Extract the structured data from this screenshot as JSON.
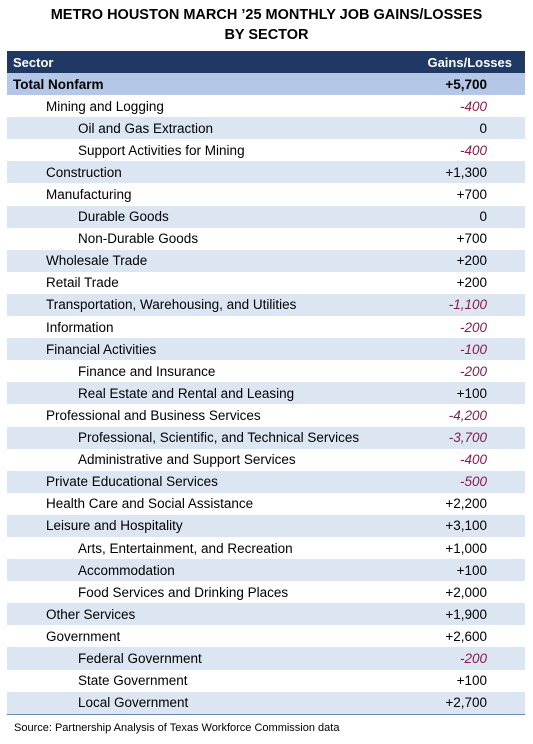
{
  "title_line1": "METRO HOUSTON MARCH ’25 MONTHLY JOB GAINS/LOSSES",
  "title_line2": "BY SECTOR",
  "header": {
    "sector": "Sector",
    "change": "Gains/Losses"
  },
  "colors": {
    "header_bg": "#1f3864",
    "total_bg": "#b4c7e7",
    "stripe_bg": "#dce6f2",
    "negative_text": "#8b1a4a"
  },
  "rows": [
    {
      "sector": "Total Nonfarm",
      "value": "+5,700",
      "level": 0,
      "negative": false
    },
    {
      "sector": "Mining and Logging",
      "value": "-400",
      "level": 1,
      "negative": true
    },
    {
      "sector": "Oil and Gas Extraction",
      "value": "0",
      "level": 2,
      "negative": false
    },
    {
      "sector": "Support Activities for Mining",
      "value": "-400",
      "level": 2,
      "negative": true
    },
    {
      "sector": "Construction",
      "value": "+1,300",
      "level": 1,
      "negative": false
    },
    {
      "sector": "Manufacturing",
      "value": "+700",
      "level": 1,
      "negative": false
    },
    {
      "sector": "Durable Goods",
      "value": "0",
      "level": 2,
      "negative": false
    },
    {
      "sector": "Non-Durable Goods",
      "value": "+700",
      "level": 2,
      "negative": false
    },
    {
      "sector": "Wholesale Trade",
      "value": "+200",
      "level": 1,
      "negative": false
    },
    {
      "sector": "Retail Trade",
      "value": "+200",
      "level": 1,
      "negative": false
    },
    {
      "sector": "Transportation, Warehousing, and Utilities",
      "value": "-1,100",
      "level": 1,
      "negative": true
    },
    {
      "sector": "Information",
      "value": "-200",
      "level": 1,
      "negative": true
    },
    {
      "sector": "Financial Activities",
      "value": "-100",
      "level": 1,
      "negative": true
    },
    {
      "sector": "Finance and Insurance",
      "value": "-200",
      "level": 2,
      "negative": true
    },
    {
      "sector": "Real Estate and Rental and Leasing",
      "value": "+100",
      "level": 2,
      "negative": false
    },
    {
      "sector": "Professional and Business Services",
      "value": "-4,200",
      "level": 1,
      "negative": true
    },
    {
      "sector": "Professional, Scientific, and Technical Services",
      "value": "-3,700",
      "level": 2,
      "negative": true
    },
    {
      "sector": "Administrative and Support Services",
      "value": "-400",
      "level": 2,
      "negative": true
    },
    {
      "sector": "Private Educational Services",
      "value": "-500",
      "level": 1,
      "negative": true
    },
    {
      "sector": "Health Care and Social Assistance",
      "value": "+2,200",
      "level": 1,
      "negative": false
    },
    {
      "sector": "Leisure and Hospitality",
      "value": "+3,100",
      "level": 1,
      "negative": false
    },
    {
      "sector": "Arts, Entertainment, and Recreation",
      "value": "+1,000",
      "level": 2,
      "negative": false
    },
    {
      "sector": "Accommodation",
      "value": "+100",
      "level": 2,
      "negative": false
    },
    {
      "sector": "Food Services and Drinking Places",
      "value": "+2,000",
      "level": 2,
      "negative": false
    },
    {
      "sector": "Other Services",
      "value": "+1,900",
      "level": 1,
      "negative": false
    },
    {
      "sector": "Government",
      "value": "+2,600",
      "level": 1,
      "negative": false
    },
    {
      "sector": "Federal Government",
      "value": "-200",
      "level": 2,
      "negative": true
    },
    {
      "sector": "State Government",
      "value": "+100",
      "level": 2,
      "negative": false
    },
    {
      "sector": "Local Government",
      "value": "+2,700",
      "level": 2,
      "negative": false
    }
  ],
  "source": "Source: Partnership Analysis of Texas Workforce Commission data"
}
